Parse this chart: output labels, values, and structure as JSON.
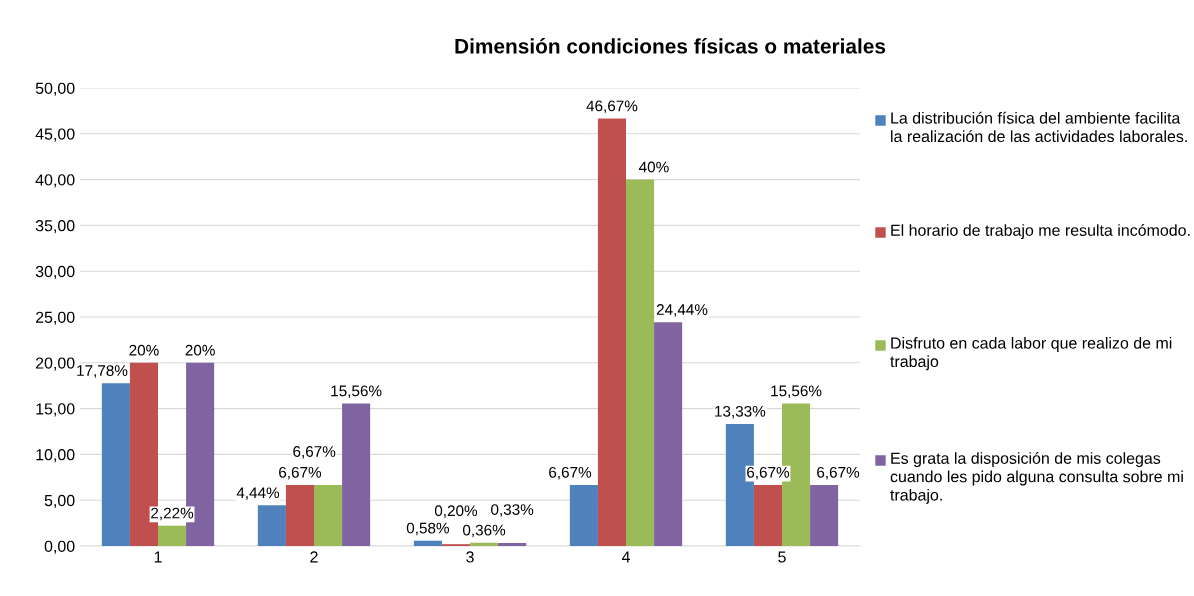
{
  "chart_data": {
    "type": "bar",
    "title": "Dimensión condiciones físicas o materiales",
    "categories": [
      "1",
      "2",
      "3",
      "4",
      "5"
    ],
    "series": [
      {
        "name": "La distribución física del ambiente facilita la realización de las actividades laborales.",
        "color": "#4f81bd",
        "values": [
          17.78,
          4.44,
          0.58,
          6.67,
          13.33
        ],
        "value_labels": [
          "17,78%",
          "4,44%",
          "0,58%",
          "6,67%",
          "13,33%"
        ]
      },
      {
        "name": "El horario de trabajo me resulta incómodo.",
        "color": "#c0504d",
        "values": [
          20,
          6.67,
          0.2,
          46.67,
          6.67
        ],
        "value_labels": [
          "20%",
          "6,67%",
          "0,20%",
          "46,67%",
          "6,67%"
        ]
      },
      {
        "name": "Disfruto en cada labor que realizo de mi trabajo",
        "color": "#9bbb59",
        "values": [
          2.22,
          6.67,
          0.36,
          40,
          15.56
        ],
        "value_labels": [
          "2,22%",
          "6,67%",
          "0,36%",
          "40%",
          "15,56%"
        ]
      },
      {
        "name": "Es grata la disposición de mis colegas cuando les pido alguna consulta sobre mi trabajo.",
        "color": "#8064a2",
        "values": [
          20,
          15.56,
          0.33,
          24.44,
          6.67
        ],
        "value_labels": [
          "20%",
          "15,56%",
          "0,33%",
          "24,44%",
          "6,67%"
        ]
      }
    ],
    "ylim": [
      0,
      50
    ],
    "yticks": [
      {
        "value": 0,
        "label": "0,00"
      },
      {
        "value": 5,
        "label": "5,00"
      },
      {
        "value": 10,
        "label": "10,00"
      },
      {
        "value": 15,
        "label": "15,00"
      },
      {
        "value": 20,
        "label": "20,00"
      },
      {
        "value": 25,
        "label": "25,00"
      },
      {
        "value": 30,
        "label": "30,00"
      },
      {
        "value": 35,
        "label": "35,00"
      },
      {
        "value": 40,
        "label": "40,00"
      },
      {
        "value": 45,
        "label": "45,00"
      },
      {
        "value": 50,
        "label": "50,00"
      }
    ],
    "grid": "y",
    "legend": "right"
  }
}
